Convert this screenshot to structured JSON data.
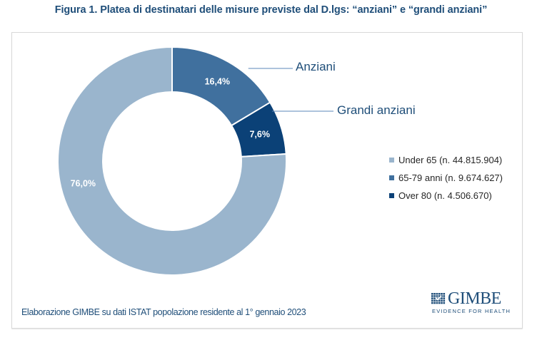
{
  "chart_data": {
    "type": "pie",
    "variant": "donut",
    "title": "Figura 1. Platea di destinatari delle misure previste dal D.lgs: “anziani” e “grandi anziani”",
    "start_angle_deg": 0,
    "direction": "clockwise",
    "slices": [
      {
        "name": "65-79 anni",
        "legend": "65-79 anni (n. 9.674.627)",
        "count": 9674627,
        "percent": 16.4,
        "label": "16,4%",
        "color": "#40709e"
      },
      {
        "name": "Over 80",
        "legend": "Over 80 (n. 4.506.670)",
        "count": 4506670,
        "percent": 7.6,
        "label": "7,6%",
        "color": "#0b4177"
      },
      {
        "name": "Under 65",
        "legend": "Under 65 (n. 44.815.904)",
        "count": 44815904,
        "percent": 76.0,
        "label": "76,0%",
        "color": "#9ab5cd"
      }
    ],
    "legend_order": [
      "Under 65",
      "65-79 anni",
      "Over 80"
    ],
    "legend_position": "right",
    "annotations": [
      {
        "text": "Anziani",
        "target": "65-79 anni"
      },
      {
        "text": "Grandi anziani",
        "target": "Over 80"
      }
    ],
    "source": "Elaborazione GIMBE su dati ISTAT popolazione residente al 1° gennaio 2023"
  },
  "legend": [
    {
      "label": "Under 65 (n. 44.815.904)",
      "color": "#9ab5cd"
    },
    {
      "label": "65-79 anni (n. 9.674.627)",
      "color": "#40709e"
    },
    {
      "label": "Over 80 (n. 4.506.670)",
      "color": "#0b4177"
    }
  ],
  "callouts": {
    "anziani": "Anziani",
    "grandi_anziani": "Grandi anziani",
    "line_color": "#5b87b8"
  },
  "logo": {
    "name": "GIMBE",
    "tagline": "EVIDENCE FOR HEALTH",
    "icon": "grid-check-icon",
    "color": "#1f4e79"
  }
}
